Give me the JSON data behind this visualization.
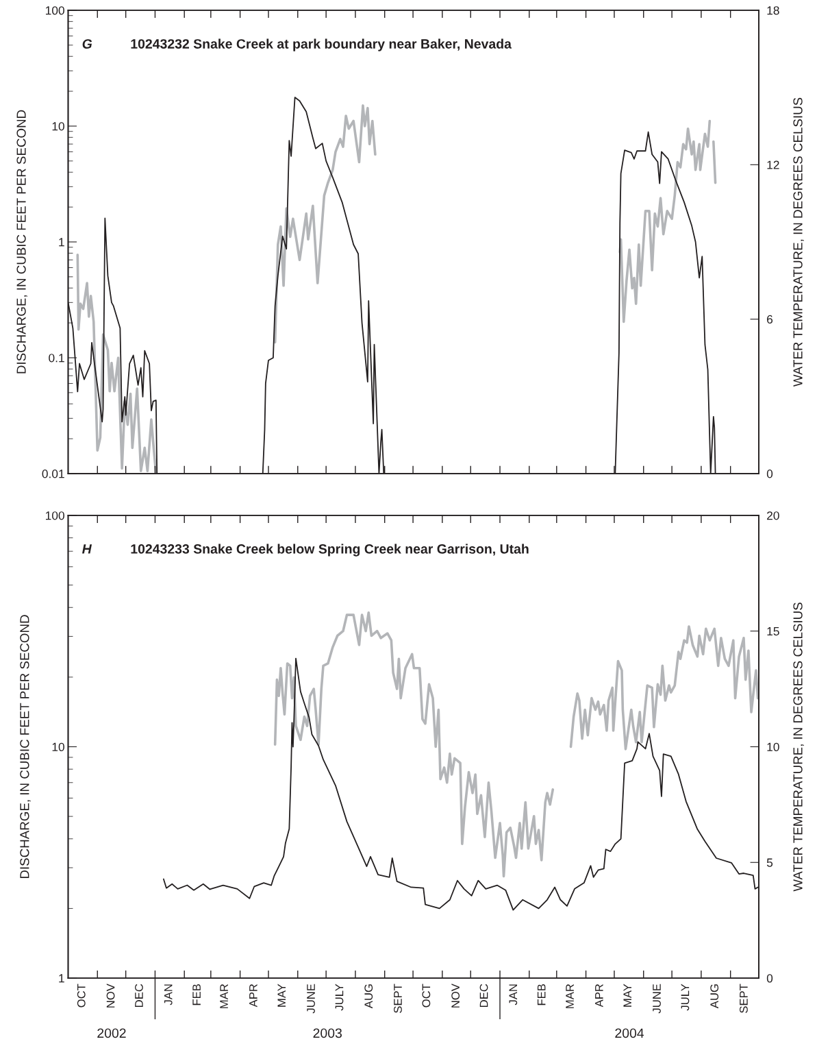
{
  "chart_data": [
    {
      "type": "line",
      "title": "G",
      "subtitle": "10243232 Snake Creek at park boundary near Baker, Nevada",
      "ylabel": "DISCHARGE, IN CUBIC FEET PER SECOND",
      "y2label": "WATER TEMPERATURE, IN DEGREES CELSIUS",
      "log": "y",
      "tick_labels": "y",
      "xlim": [
        "2002-10-01",
        "2004-10-01"
      ],
      "xticks": [
        {
          "value": "2002-11-01",
          "label": null
        },
        {
          "value": "2002-12-01",
          "label": null
        },
        {
          "value": "2003-01-01",
          "label": null
        },
        {
          "value": "2003-02-01",
          "label": null
        },
        {
          "value": "2003-03-01",
          "label": null
        },
        {
          "value": "2003-04-01",
          "label": null
        },
        {
          "value": "2003-05-01",
          "label": null
        },
        {
          "value": "2003-06-01",
          "label": null
        },
        {
          "value": "2003-07-01",
          "label": null
        },
        {
          "value": "2003-08-01",
          "label": null
        },
        {
          "value": "2003-09-01",
          "label": null
        },
        {
          "value": "2003-10-01",
          "label": null
        },
        {
          "value": "2003-11-01",
          "label": null
        },
        {
          "value": "2003-12-01",
          "label": null
        },
        {
          "value": "2004-01-01",
          "label": null
        },
        {
          "value": "2004-02-01",
          "label": null
        },
        {
          "value": "2004-03-01",
          "label": null
        },
        {
          "value": "2004-04-01",
          "label": null
        },
        {
          "value": "2004-05-01",
          "label": null
        },
        {
          "value": "2004-06-01",
          "label": null
        },
        {
          "value": "2004-07-01",
          "label": null
        },
        {
          "value": "2004-08-01",
          "label": null
        },
        {
          "value": "2004-09-01",
          "label": null
        }
      ],
      "ylim": [
        0.01,
        100
      ],
      "yticks": [
        0.01,
        0.1,
        1,
        10,
        100
      ],
      "y2lim": [
        0,
        18
      ],
      "y2ticks": [
        0,
        6,
        12,
        18
      ],
      "series": [
        {
          "color": "#b3b5b8",
          "axis": "y2",
          "x": [
            "2002-10-11",
            "2002-10-12",
            "2002-10-14",
            "2002-10-17",
            "2002-10-21",
            "2002-10-23",
            "2002-10-25",
            "2002-10-28",
            "2002-11-01",
            "2002-11-04",
            "2002-11-07",
            "2002-11-12",
            "2002-11-14",
            "2002-11-16",
            "2002-11-19",
            "2002-11-23",
            "2002-11-27",
            "2002-11-30",
            "2002-12-03",
            "2002-12-06",
            "2002-12-08",
            "2002-12-13",
            "2002-12-17",
            "2002-12-21",
            "2002-12-24",
            "2002-12-28",
            "2002-12-31",
            "2003-01-02",
            "2003-02-15",
            "2003-05-08",
            "2003-05-11",
            "2003-05-14",
            "2003-05-17",
            "2003-05-20",
            "2003-05-24",
            "2003-05-27",
            "2003-06-03",
            "2003-06-10",
            "2003-06-12",
            "2003-06-17",
            "2003-06-22",
            "2003-06-29",
            "2003-07-03",
            "2003-07-08",
            "2003-07-11",
            "2003-07-16",
            "2003-07-19",
            "2003-07-22",
            "2003-07-25",
            "2003-07-30",
            "2003-08-05",
            "2003-08-09",
            "2003-08-11",
            "2003-08-14",
            "2003-08-16",
            "2003-08-19",
            "2003-08-22",
            "2003-12-01",
            "2004-05-07",
            "2004-05-08",
            "2004-05-11",
            "2004-05-14",
            "2004-05-17",
            "2004-05-20",
            "2004-05-22",
            "2004-05-24",
            "2004-05-27",
            "2004-05-29",
            "2004-06-03",
            "2004-06-07",
            "2004-06-10",
            "2004-06-13",
            "2004-06-16",
            "2004-06-19",
            "2004-06-22",
            "2004-06-26",
            "2004-07-01",
            "2004-07-04",
            "2004-07-07",
            "2004-07-10",
            "2004-07-13",
            "2004-07-16",
            "2004-07-18",
            "2004-07-22",
            "2004-07-24",
            "2004-07-26",
            "2004-07-30",
            "2004-07-31",
            "2004-08-05",
            "2004-08-08",
            "2004-08-10",
            "2004-08-12",
            "2004-08-14",
            "2004-08-16"
          ],
          "values": [
            8.5,
            5.6,
            6.6,
            6.4,
            7.4,
            6.1,
            6.9,
            5.9,
            0.9,
            1.4,
            5.4,
            4.8,
            3.2,
            4.3,
            3.2,
            4.5,
            0.2,
            2.8,
            1.9,
            3.1,
            1.0,
            3.3,
            0.1,
            1.0,
            0.1,
            2.1,
            0.8,
            0.0,
            null,
            5.1,
            8.9,
            9.6,
            7.3,
            10.3,
            9.2,
            9.9,
            8.3,
            10.1,
            9.1,
            10.4,
            7.4,
            10.8,
            11.3,
            11.8,
            12.5,
            13.0,
            12.7,
            13.9,
            13.4,
            13.7,
            12.1,
            14.3,
            13.5,
            14.2,
            12.8,
            13.7,
            12.4,
            null,
            8.6,
            9.1,
            5.9,
            7.5,
            8.7,
            7.2,
            7.6,
            6.6,
            8.9,
            7.3,
            10.2,
            10.2,
            7.9,
            10.1,
            9.6,
            10.7,
            9.3,
            10.2,
            9.9,
            10.8,
            12.1,
            11.9,
            12.8,
            12.6,
            13.4,
            12.4,
            12.9,
            11.8,
            12.8,
            11.8,
            13.2,
            12.7,
            13.7,
            null,
            12.9,
            11.3
          ]
        },
        {
          "color": "#231f20",
          "x": [
            "2002-10-01",
            "2002-10-06",
            "2002-10-11",
            "2002-10-13",
            "2002-10-18",
            "2002-10-25",
            "2002-10-26",
            "2002-10-30",
            "2002-11-06",
            "2002-11-07",
            "2002-11-09",
            "2002-11-12",
            "2002-11-16",
            "2002-11-18",
            "2002-11-25",
            "2002-11-27",
            "2002-11-30",
            "2002-12-01",
            "2002-12-05",
            "2002-12-09",
            "2002-12-14",
            "2002-12-17",
            "2002-12-19",
            "2002-12-21",
            "2002-12-26",
            "2002-12-28",
            "2002-12-30",
            "2003-01-02",
            "2003-01-03",
            "2003-02-15",
            "2003-04-25",
            "2003-04-27",
            "2003-04-28",
            "2003-05-01",
            "2003-05-06",
            "2003-05-08",
            "2003-05-11",
            "2003-05-16",
            "2003-05-20",
            "2003-05-23",
            "2003-05-25",
            "2003-05-29",
            "2003-06-03",
            "2003-06-10",
            "2003-06-17",
            "2003-06-20",
            "2003-06-27",
            "2003-07-01",
            "2003-07-08",
            "2003-07-18",
            "2003-07-30",
            "2003-08-04",
            "2003-08-08",
            "2003-08-14",
            "2003-08-15",
            "2003-08-20",
            "2003-08-21",
            "2003-08-26",
            "2003-08-28",
            "2003-08-29",
            "2003-08-31",
            "2003-12-01",
            "2004-05-02",
            "2004-05-06",
            "2004-05-07",
            "2004-05-08",
            "2004-05-12",
            "2004-05-19",
            "2004-05-22",
            "2004-05-25",
            "2004-06-03",
            "2004-06-06",
            "2004-06-10",
            "2004-06-16",
            "2004-06-18",
            "2004-06-20",
            "2004-06-27",
            "2004-07-05",
            "2004-07-14",
            "2004-07-22",
            "2004-07-26",
            "2004-07-30",
            "2004-08-02",
            "2004-08-05",
            "2004-08-08",
            "2004-08-11",
            "2004-08-14",
            "2004-08-15",
            "2004-08-16"
          ],
          "values": [
            0.3,
            0.18,
            0.051,
            0.089,
            0.065,
            0.089,
            0.135,
            0.076,
            0.028,
            0.036,
            1.6,
            0.51,
            0.3,
            0.28,
            0.18,
            0.028,
            0.046,
            0.032,
            0.089,
            0.105,
            0.058,
            0.082,
            0.046,
            0.115,
            0.089,
            0.035,
            0.042,
            0.043,
            0.01,
            null,
            0.01,
            0.024,
            0.06,
            0.095,
            0.1,
            0.28,
            0.51,
            1.12,
            0.87,
            7.5,
            5.5,
            17.7,
            16.5,
            13.3,
            7.9,
            6.4,
            7.1,
            5.0,
            3.6,
            2.2,
            0.95,
            0.79,
            0.2,
            0.062,
            0.31,
            0.027,
            0.13,
            0.01,
            0.019,
            0.024,
            0.01,
            null,
            0.01,
            0.11,
            1.45,
            3.9,
            6.2,
            5.9,
            5.2,
            6.1,
            6.1,
            8.9,
            5.7,
            4.9,
            3.2,
            6.0,
            5.2,
            3.4,
            2.2,
            1.38,
            1.0,
            0.49,
            0.75,
            0.13,
            0.079,
            0.01,
            0.031,
            0.025,
            0.01
          ]
        }
      ]
    },
    {
      "type": "line",
      "title": "H",
      "subtitle": "10243233 Snake Creek below Spring Creek near Garrison, Utah",
      "ylabel": "DISCHARGE, IN CUBIC FEET PER SECOND",
      "y2label": "WATER TEMPERATURE, IN DEGREES CELSIUS",
      "log": "y",
      "xlim": [
        "2002-10-01",
        "2004-10-01"
      ],
      "xticks": [
        {
          "value": "2002-10-16",
          "label": "OCT"
        },
        {
          "value": "2002-11-01",
          "label": null
        },
        {
          "value": "2002-11-16",
          "label": "NOV"
        },
        {
          "value": "2002-12-01",
          "label": null
        },
        {
          "value": "2002-12-16",
          "label": "DEC"
        },
        {
          "value": "2003-01-01",
          "label": null
        },
        {
          "value": "2003-01-16",
          "label": "JAN"
        },
        {
          "value": "2003-02-01",
          "label": null
        },
        {
          "value": "2003-02-15",
          "label": "FEB"
        },
        {
          "value": "2003-03-01",
          "label": null
        },
        {
          "value": "2003-03-16",
          "label": "MAR"
        },
        {
          "value": "2003-04-01",
          "label": null
        },
        {
          "value": "2003-04-16",
          "label": "APR"
        },
        {
          "value": "2003-05-01",
          "label": null
        },
        {
          "value": "2003-05-16",
          "label": "MAY"
        },
        {
          "value": "2003-06-01",
          "label": null
        },
        {
          "value": "2003-06-16",
          "label": "JUNE"
        },
        {
          "value": "2003-07-01",
          "label": null
        },
        {
          "value": "2003-07-16",
          "label": "JULY"
        },
        {
          "value": "2003-08-01",
          "label": null
        },
        {
          "value": "2003-08-16",
          "label": "AUG"
        },
        {
          "value": "2003-09-01",
          "label": null
        },
        {
          "value": "2003-09-16",
          "label": "SEPT"
        },
        {
          "value": "2003-10-01",
          "label": null
        },
        {
          "value": "2003-10-16",
          "label": "OCT"
        },
        {
          "value": "2003-11-01",
          "label": null
        },
        {
          "value": "2003-11-16",
          "label": "NOV"
        },
        {
          "value": "2003-12-01",
          "label": null
        },
        {
          "value": "2003-12-16",
          "label": "DEC"
        },
        {
          "value": "2004-01-01",
          "label": null
        },
        {
          "value": "2004-01-16",
          "label": "JAN"
        },
        {
          "value": "2004-02-01",
          "label": null
        },
        {
          "value": "2004-02-15",
          "label": "FEB"
        },
        {
          "value": "2004-03-01",
          "label": null
        },
        {
          "value": "2004-03-16",
          "label": "MAR"
        },
        {
          "value": "2004-04-01",
          "label": null
        },
        {
          "value": "2004-04-16",
          "label": "APR"
        },
        {
          "value": "2004-05-01",
          "label": null
        },
        {
          "value": "2004-05-16",
          "label": "MAY"
        },
        {
          "value": "2004-06-01",
          "label": null
        },
        {
          "value": "2004-06-16",
          "label": "JUNE"
        },
        {
          "value": "2004-07-01",
          "label": null
        },
        {
          "value": "2004-07-16",
          "label": "JULY"
        },
        {
          "value": "2004-08-01",
          "label": null
        },
        {
          "value": "2004-08-16",
          "label": "AUG"
        },
        {
          "value": "2004-09-01",
          "label": null
        },
        {
          "value": "2004-09-16",
          "label": "SEPT"
        }
      ],
      "ylim": [
        1,
        100
      ],
      "yticks": [
        1,
        10,
        100
      ],
      "y2lim": [
        0,
        20
      ],
      "y2ticks": [
        0,
        5,
        10,
        15,
        20
      ],
      "annotations": [
        "2002",
        "2003",
        "2004"
      ],
      "series": [
        {
          "color": "#b3b5b8",
          "axis": "y2",
          "x": [
            "2003-05-08",
            "2003-05-10",
            "2003-05-12",
            "2003-05-14",
            "2003-05-16",
            "2003-05-18",
            "2003-05-21",
            "2003-05-24",
            "2003-05-26",
            "2003-05-28",
            "2003-05-30",
            "2003-06-04",
            "2003-06-08",
            "2003-06-11",
            "2003-06-14",
            "2003-06-18",
            "2003-06-20",
            "2003-06-23",
            "2003-06-26",
            "2003-06-28",
            "2003-07-03",
            "2003-07-08",
            "2003-07-13",
            "2003-07-19",
            "2003-07-23",
            "2003-07-30",
            "2003-08-05",
            "2003-08-08",
            "2003-08-12",
            "2003-08-15",
            "2003-08-18",
            "2003-08-24",
            "2003-08-28",
            "2003-09-04",
            "2003-09-08",
            "2003-09-10",
            "2003-09-14",
            "2003-09-16",
            "2003-09-18",
            "2003-09-23",
            "2003-09-30",
            "2003-10-02",
            "2003-10-08",
            "2003-10-11",
            "2003-10-14",
            "2003-10-18",
            "2003-10-22",
            "2003-10-25",
            "2003-10-28",
            "2003-10-30",
            "2003-11-03",
            "2003-11-06",
            "2003-11-09",
            "2003-11-11",
            "2003-11-14",
            "2003-11-20",
            "2003-11-22",
            "2003-11-25",
            "2003-11-29",
            "2003-12-03",
            "2003-12-06",
            "2003-12-08",
            "2003-12-12",
            "2003-12-16",
            "2003-12-20",
            "2003-12-23",
            "2003-12-27",
            "2004-01-01",
            "2004-01-04",
            "2004-01-05",
            "2004-01-08",
            "2004-01-12",
            "2004-01-16",
            "2004-01-18",
            "2004-01-22",
            "2004-01-24",
            "2004-01-28",
            "2004-01-31",
            "2004-02-06",
            "2004-02-08",
            "2004-02-11",
            "2004-02-14",
            "2004-02-18",
            "2004-02-20",
            "2004-02-23",
            "2004-02-26",
            "2004-03-05",
            "2004-03-16",
            "2004-03-19",
            "2004-03-23",
            "2004-03-25",
            "2004-03-28",
            "2004-03-31",
            "2004-04-03",
            "2004-04-07",
            "2004-04-11",
            "2004-04-14",
            "2004-04-16",
            "2004-04-20",
            "2004-04-23",
            "2004-04-25",
            "2004-04-29",
            "2004-04-30",
            "2004-05-05",
            "2004-05-09",
            "2004-05-10",
            "2004-05-13",
            "2004-05-19",
            "2004-05-21",
            "2004-05-24",
            "2004-05-28",
            "2004-05-30",
            "2004-06-05",
            "2004-06-10",
            "2004-06-12",
            "2004-06-16",
            "2004-06-19",
            "2004-06-21",
            "2004-06-24",
            "2004-06-28",
            "2004-06-30",
            "2004-07-04",
            "2004-07-08",
            "2004-07-10",
            "2004-07-14",
            "2004-07-17",
            "2004-07-19",
            "2004-07-23",
            "2004-07-28",
            "2004-07-30",
            "2004-08-03",
            "2004-08-06",
            "2004-08-10",
            "2004-08-15",
            "2004-08-19",
            "2004-08-22",
            "2004-08-26",
            "2004-08-30",
            "2004-09-04",
            "2004-09-06",
            "2004-09-10",
            "2004-09-15",
            "2004-09-17",
            "2004-09-20",
            "2004-09-23",
            "2004-09-28",
            "2004-09-30"
          ],
          "values": [
            10.1,
            12.9,
            12.2,
            13.4,
            12.3,
            11.4,
            13.6,
            13.5,
            12.1,
            13.0,
            10.9,
            10.3,
            11.3,
            10.9,
            12.2,
            12.5,
            11.6,
            10.1,
            12.5,
            13.5,
            13.6,
            14.3,
            14.8,
            15.0,
            15.7,
            15.7,
            14.4,
            15.7,
            15.0,
            15.8,
            14.8,
            15.0,
            14.7,
            14.9,
            14.6,
            13.2,
            12.5,
            13.8,
            12.1,
            13.4,
            14.0,
            13.4,
            13.4,
            11.2,
            11.0,
            12.7,
            12.1,
            10.0,
            11.6,
            8.6,
            9.1,
            8.45,
            9.7,
            8.8,
            9.5,
            9.3,
            5.8,
            7.4,
            8.9,
            8.0,
            8.8,
            7.1,
            7.9,
            6.1,
            8.45,
            7.2,
            5.2,
            6.7,
            5.3,
            4.4,
            6.3,
            6.5,
            5.7,
            5.2,
            6.7,
            5.6,
            7.6,
            5.6,
            7.0,
            5.8,
            6.4,
            5.1,
            7.6,
            8.0,
            7.5,
            8.15,
            null,
            10.0,
            11.3,
            12.3,
            12.0,
            10.35,
            11.6,
            10.5,
            12.1,
            11.6,
            11.95,
            11.4,
            11.8,
            10.7,
            12.0,
            12.55,
            10.7,
            13.7,
            13.3,
            11.6,
            9.9,
            11.6,
            10.9,
            10.2,
            11.5,
            10.2,
            12.65,
            12.55,
            10.85,
            12.7,
            12.25,
            13.5,
            12.0,
            12.65,
            12.35,
            12.65,
            14.1,
            13.8,
            14.6,
            14.5,
            15.2,
            14.4,
            13.9,
            14.8,
            14.0,
            15.1,
            14.6,
            15.1,
            13.5,
            14.7,
            13.8,
            13.5,
            14.6,
            12.1,
            13.9,
            14.7,
            12.9,
            14.15,
            11.5,
            13.3,
            12.1
          ]
        },
        {
          "color": "#231f20",
          "x": [
            "2003-01-10",
            "2003-01-13",
            "2003-01-19",
            "2003-01-25",
            "2003-02-04",
            "2003-02-11",
            "2003-02-21",
            "2003-02-28",
            "2003-03-14",
            "2003-03-29",
            "2003-04-11",
            "2003-04-16",
            "2003-04-26",
            "2003-05-04",
            "2003-05-07",
            "2003-05-12",
            "2003-05-17",
            "2003-05-19",
            "2003-05-23",
            "2003-05-25",
            "2003-05-26",
            "2003-05-27",
            "2003-05-28",
            "2003-05-30",
            "2003-06-04",
            "2003-06-08",
            "2003-06-13",
            "2003-06-16",
            "2003-06-23",
            "2003-06-28",
            "2003-07-11",
            "2003-07-23",
            "2003-08-03",
            "2003-08-13",
            "2003-08-17",
            "2003-08-25",
            "2003-09-06",
            "2003-09-09",
            "2003-09-14",
            "2003-09-29",
            "2003-10-12",
            "2003-10-14",
            "2003-10-29",
            "2003-11-09",
            "2003-11-17",
            "2003-11-24",
            "2003-12-02",
            "2003-12-09",
            "2003-12-17",
            "2003-12-29",
            "2004-01-07",
            "2004-01-15",
            "2004-01-25",
            "2004-02-11",
            "2004-02-20",
            "2004-02-28",
            "2004-03-05",
            "2004-03-12",
            "2004-03-20",
            "2004-03-30",
            "2004-04-06",
            "2004-04-09",
            "2004-04-14",
            "2004-04-20",
            "2004-04-22",
            "2004-04-27",
            "2004-05-02",
            "2004-05-08",
            "2004-05-12",
            "2004-05-20",
            "2004-05-25",
            "2004-05-26",
            "2004-06-03",
            "2004-06-07",
            "2004-06-11",
            "2004-06-18",
            "2004-06-20",
            "2004-06-22",
            "2004-06-30",
            "2004-07-08",
            "2004-07-16",
            "2004-07-28",
            "2004-08-05",
            "2004-08-17",
            "2004-09-02",
            "2004-09-10",
            "2004-09-15",
            "2004-09-25",
            "2004-09-27",
            "2004-09-30"
          ],
          "values": [
            2.68,
            2.45,
            2.55,
            2.43,
            2.52,
            2.4,
            2.55,
            2.42,
            2.52,
            2.43,
            2.21,
            2.49,
            2.58,
            2.52,
            2.76,
            3.04,
            3.35,
            3.83,
            4.42,
            8.2,
            12.7,
            10.0,
            13.0,
            24.1,
            17.3,
            15.4,
            13.4,
            11.3,
            10.1,
            8.8,
            6.8,
            4.75,
            3.76,
            3.04,
            3.35,
            2.8,
            2.73,
            3.3,
            2.62,
            2.47,
            2.45,
            2.08,
            2.0,
            2.18,
            2.64,
            2.43,
            2.27,
            2.64,
            2.43,
            2.52,
            2.4,
            1.97,
            2.18,
            2.0,
            2.18,
            2.47,
            2.18,
            2.05,
            2.43,
            2.58,
            3.06,
            2.73,
            2.93,
            2.97,
            3.6,
            3.53,
            3.8,
            4.0,
            8.5,
            8.7,
            9.8,
            10.5,
            9.8,
            11.4,
            9.1,
            7.9,
            6.1,
            9.3,
            9.1,
            7.6,
            5.8,
            4.4,
            3.9,
            3.3,
            3.15,
            2.82,
            2.84,
            2.78,
            2.43,
            2.47
          ]
        }
      ]
    }
  ]
}
